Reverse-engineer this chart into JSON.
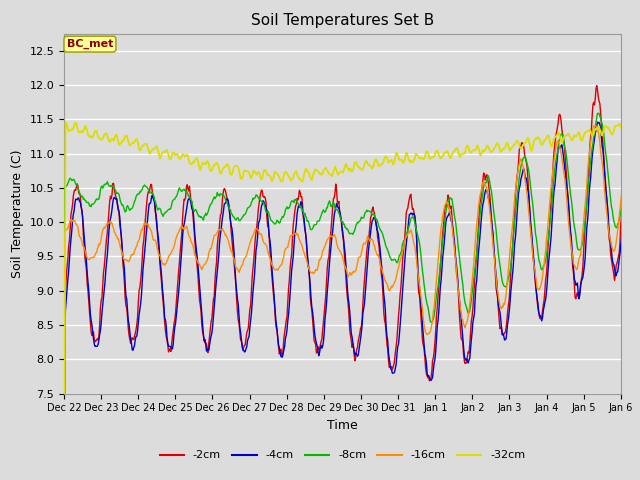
{
  "title": "Soil Temperatures Set B",
  "xlabel": "Time",
  "ylabel": "Soil Temperature (C)",
  "ylim": [
    7.5,
    12.75
  ],
  "annotation": "BC_met",
  "annotation_color": "#8B0000",
  "annotation_bg": "#FFFF99",
  "background_color": "#DCDCDC",
  "grid_color": "#FFFFFF",
  "colors": {
    "-2cm": "#DD0000",
    "-4cm": "#0000CC",
    "-8cm": "#00BB00",
    "-16cm": "#FF8C00",
    "-32cm": "#DDDD00"
  },
  "legend_labels": [
    "-2cm",
    "-4cm",
    "-8cm",
    "-16cm",
    "-32cm"
  ],
  "tick_labels": [
    "Dec 22",
    "Dec 23",
    "Dec 24",
    "Dec 25",
    "Dec 26",
    "Dec 27",
    "Dec 28",
    "Dec 29",
    "Dec 30",
    "Dec 31",
    "Jan 1",
    "Jan 2",
    "Jan 3",
    "Jan 4",
    "Jan 5",
    "Jan 6"
  ]
}
